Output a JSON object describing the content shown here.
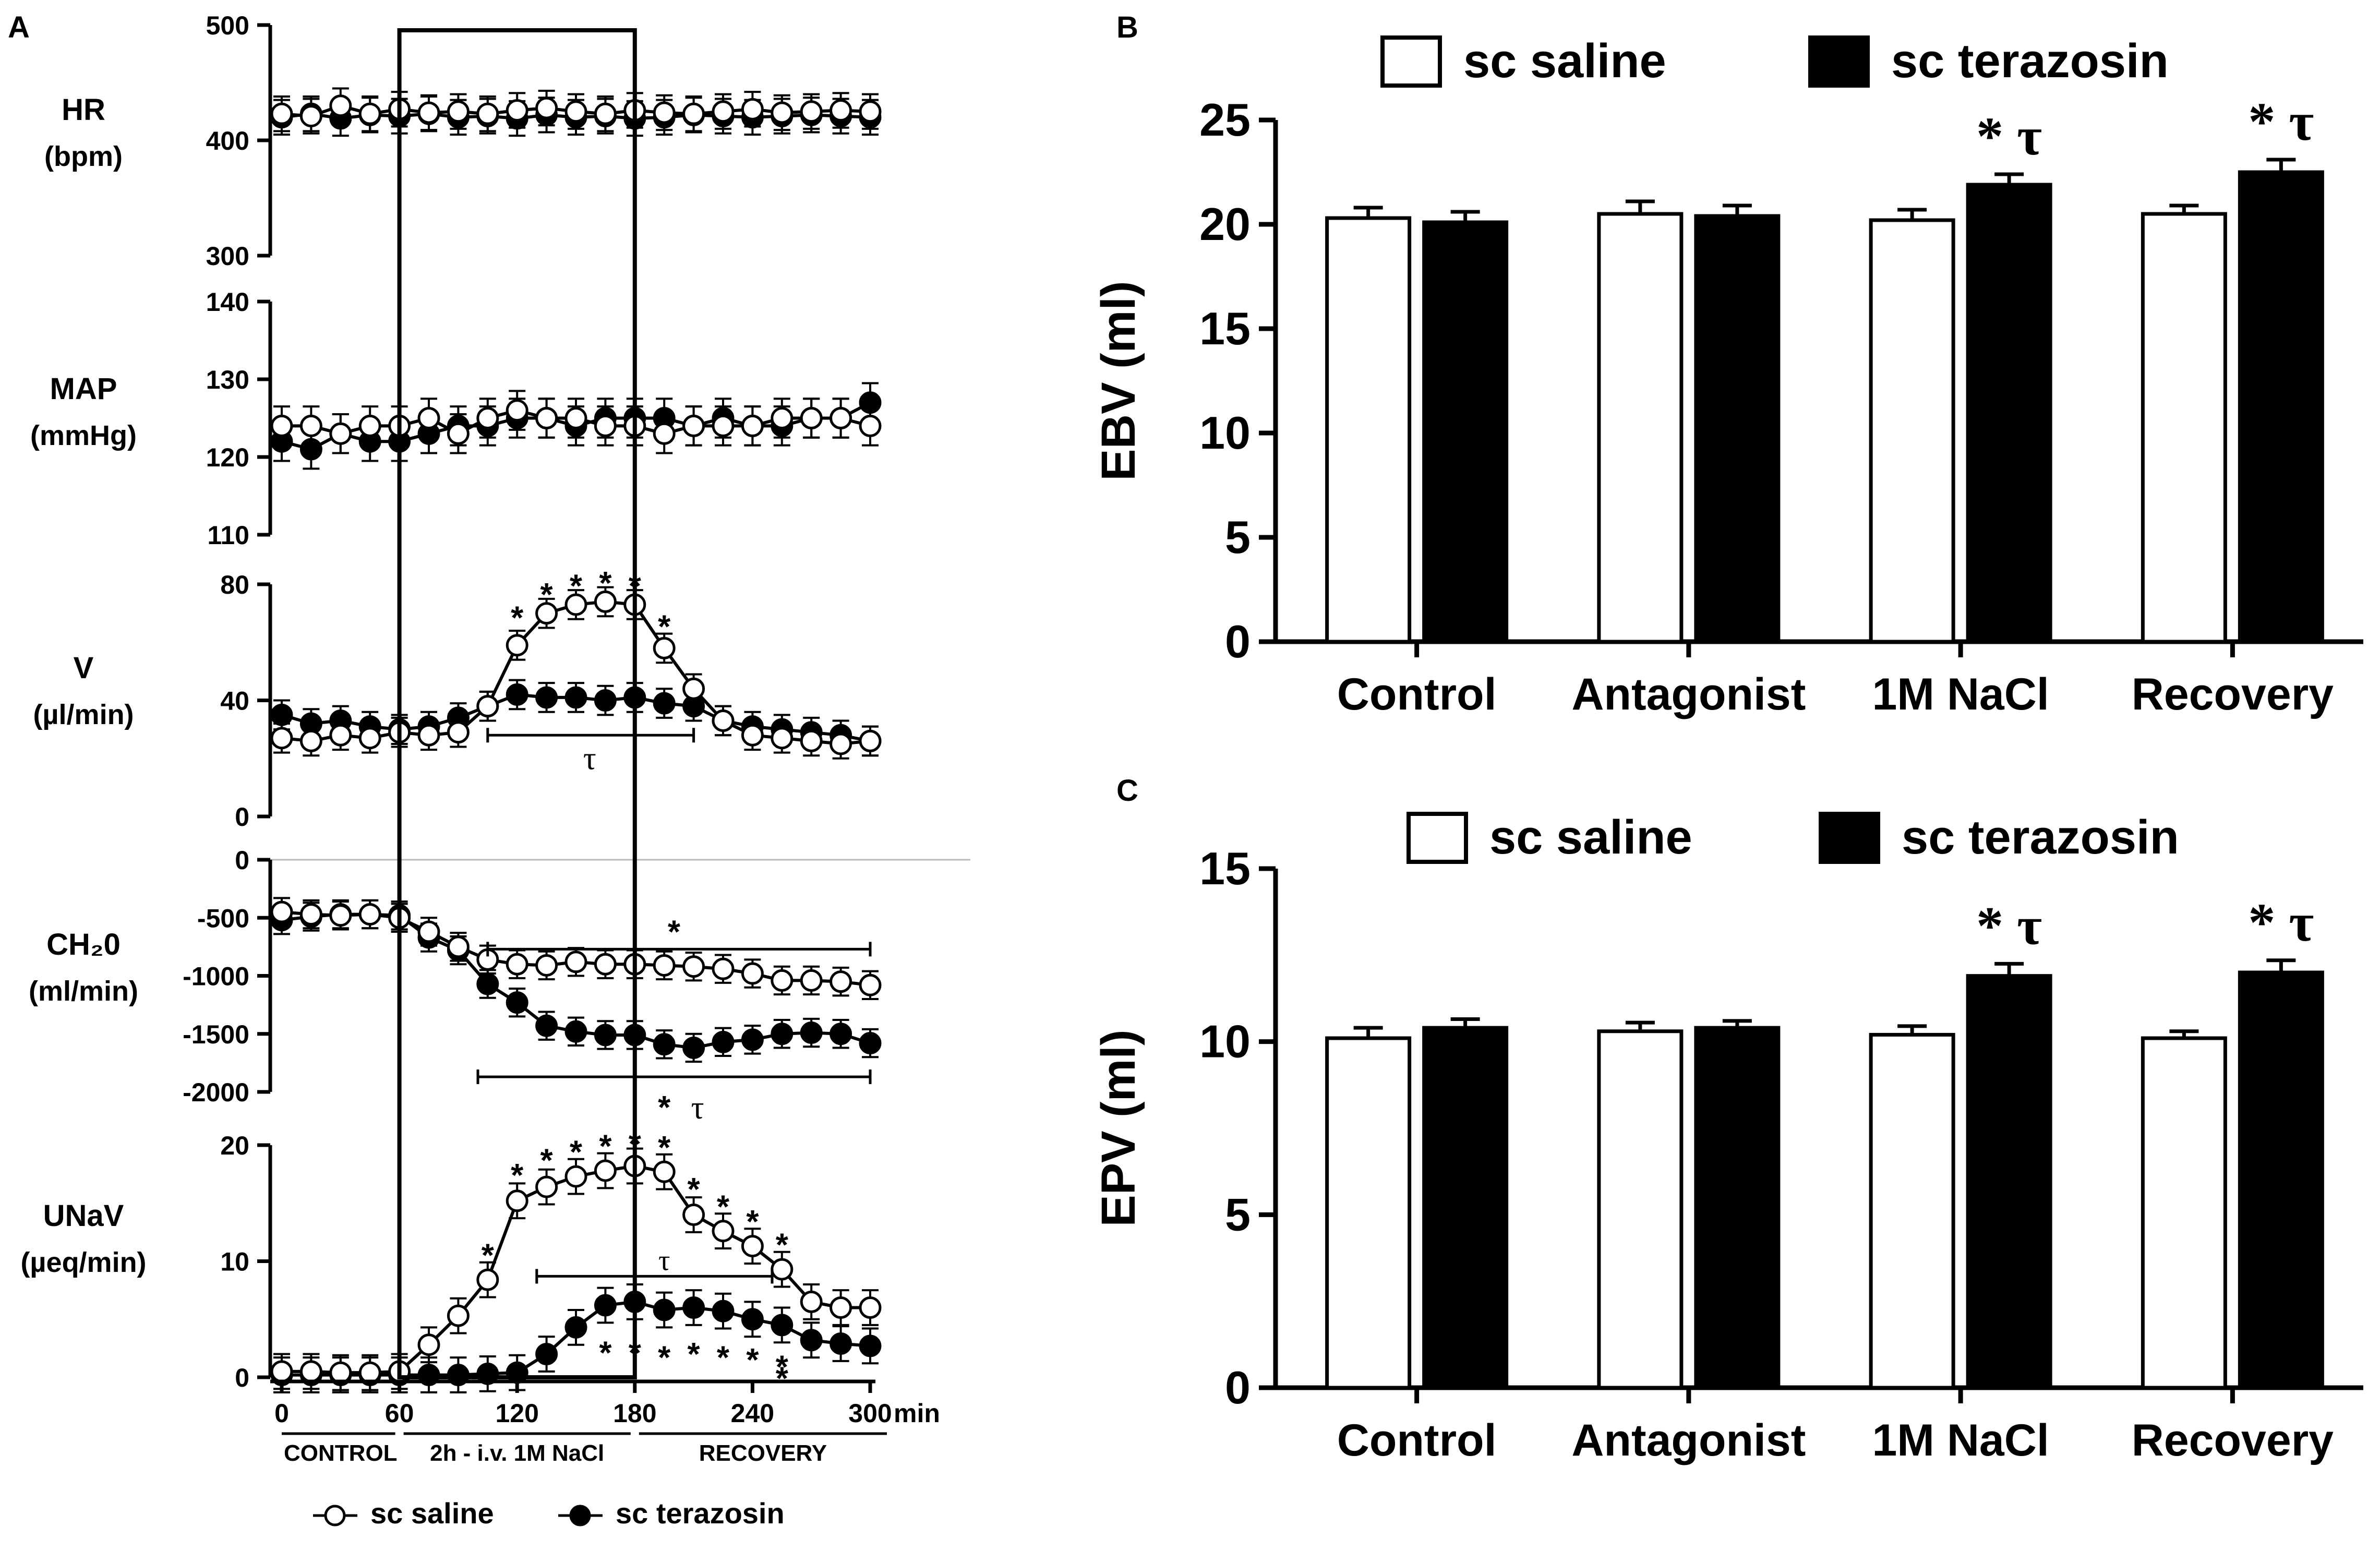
{
  "figure": {
    "panel_labels": [
      "A",
      "B",
      "C"
    ],
    "legend_A": {
      "saline": "sc saline",
      "terazosin": "sc terazosin"
    },
    "x_axis": {
      "ticks": [
        "0",
        "60",
        "120",
        "180",
        "240",
        "300"
      ],
      "tick_values": [
        0,
        60,
        120,
        180,
        240,
        300
      ],
      "unit": "min",
      "phases": [
        "CONTROL",
        "2h - i.v. 1M NaCl",
        "RECOVERY"
      ]
    }
  },
  "chart_data": [
    {
      "type": "line",
      "id": "HR",
      "ylabel": [
        "HR",
        "(bpm)"
      ],
      "ylim": [
        300,
        500
      ],
      "yticks": [
        "300",
        "400",
        "500"
      ],
      "ytick_values": [
        300,
        400,
        500
      ],
      "x": [
        0,
        15,
        30,
        45,
        60,
        75,
        90,
        105,
        120,
        135,
        150,
        165,
        180,
        195,
        210,
        225,
        240,
        255,
        270,
        285,
        300
      ],
      "series": [
        {
          "name": "sc saline",
          "values": [
            423,
            421,
            430,
            423,
            427,
            424,
            425,
            423,
            426,
            428,
            425,
            423,
            426,
            424,
            423,
            425,
            427,
            424,
            425,
            426,
            425
          ]
        },
        {
          "name": "sc terazosin",
          "values": [
            420,
            423,
            419,
            422,
            421,
            423,
            420,
            421,
            419,
            422,
            420,
            421,
            419,
            420,
            422,
            421,
            420,
            421,
            422,
            421,
            420
          ]
        }
      ],
      "errors": 15,
      "annotations": []
    },
    {
      "type": "line",
      "id": "MAP",
      "ylabel": [
        "MAP",
        "(mmHg)"
      ],
      "ylim": [
        110,
        140
      ],
      "yticks": [
        "110",
        "120",
        "130",
        "140"
      ],
      "ytick_values": [
        110,
        120,
        130,
        140
      ],
      "x": [
        0,
        15,
        30,
        45,
        60,
        75,
        90,
        105,
        120,
        135,
        150,
        165,
        180,
        195,
        210,
        225,
        240,
        255,
        270,
        285,
        300
      ],
      "series": [
        {
          "name": "sc saline",
          "values": [
            124,
            124,
            123,
            124,
            124,
            125,
            123,
            125,
            126,
            125,
            125,
            124,
            124,
            123,
            124,
            124,
            124,
            125,
            125,
            125,
            124
          ]
        },
        {
          "name": "sc terazosin",
          "values": [
            122,
            121,
            123,
            122,
            122,
            123,
            124,
            124,
            125,
            125,
            124,
            125,
            125,
            125,
            124,
            125,
            124,
            124,
            125,
            125,
            127
          ]
        }
      ],
      "errors": 2.5,
      "annotations": []
    },
    {
      "type": "line",
      "id": "V",
      "ylabel": [
        "V",
        "(µl/min)"
      ],
      "ylim": [
        0,
        80
      ],
      "yticks": [
        "0",
        "40",
        "80"
      ],
      "ytick_values": [
        0,
        40,
        80
      ],
      "x": [
        0,
        15,
        30,
        45,
        60,
        75,
        90,
        105,
        120,
        135,
        150,
        165,
        180,
        195,
        210,
        225,
        240,
        255,
        270,
        285,
        300
      ],
      "series": [
        {
          "name": "sc saline",
          "values": [
            27,
            26,
            28,
            27,
            29,
            28,
            29,
            38,
            59,
            70,
            73,
            74,
            73,
            58,
            44,
            33,
            28,
            27,
            26,
            25,
            26
          ]
        },
        {
          "name": "sc terazosin",
          "values": [
            35,
            32,
            33,
            31,
            30,
            31,
            34,
            38,
            42,
            41,
            41,
            40,
            41,
            39,
            38,
            33,
            31,
            30,
            29,
            28,
            26
          ]
        }
      ],
      "errors": 5,
      "annotations": [
        "*",
        "*",
        "*",
        "*",
        "*",
        "*",
        "τ"
      ]
    },
    {
      "type": "line",
      "id": "CH2O",
      "ylabel": [
        "CH₂0",
        "(ml/min)"
      ],
      "ylim": [
        -2000,
        0
      ],
      "yticks": [
        "0",
        "-500",
        "-1000",
        "-1500",
        "-2000"
      ],
      "ytick_values": [
        0,
        -500,
        -1000,
        -1500,
        -2000
      ],
      "x": [
        0,
        15,
        30,
        45,
        60,
        75,
        90,
        105,
        120,
        135,
        150,
        165,
        180,
        195,
        210,
        225,
        240,
        255,
        270,
        285,
        300
      ],
      "series": [
        {
          "name": "sc saline",
          "values": [
            -450,
            -470,
            -480,
            -470,
            -500,
            -620,
            -750,
            -860,
            -900,
            -910,
            -880,
            -900,
            -900,
            -910,
            -920,
            -940,
            -980,
            -1040,
            -1040,
            -1050,
            -1080
          ]
        },
        {
          "name": "sc terazosin",
          "values": [
            -520,
            -490,
            -470,
            -470,
            -480,
            -670,
            -780,
            -1070,
            -1230,
            -1430,
            -1480,
            -1510,
            -1510,
            -1590,
            -1620,
            -1570,
            -1550,
            -1500,
            -1490,
            -1500,
            -1580
          ]
        }
      ],
      "errors": 120,
      "annotations": [
        "*",
        "*",
        "τ"
      ]
    },
    {
      "type": "line",
      "id": "UNaV",
      "ylabel": [
        "UNaV",
        "(µeq/min)"
      ],
      "ylim": [
        0,
        20
      ],
      "yticks": [
        "0",
        "10",
        "20"
      ],
      "ytick_values": [
        0,
        10,
        20
      ],
      "x": [
        0,
        15,
        30,
        45,
        60,
        75,
        90,
        105,
        120,
        135,
        150,
        165,
        180,
        195,
        210,
        225,
        240,
        255,
        270,
        285,
        300
      ],
      "series": [
        {
          "name": "sc saline",
          "values": [
            0.5,
            0.5,
            0.4,
            0.4,
            0.5,
            2.8,
            5.3,
            8.4,
            15.2,
            16.4,
            17.3,
            17.8,
            18.2,
            17.7,
            14.0,
            12.6,
            11.3,
            9.3,
            6.5,
            6.0,
            6.0
          ]
        },
        {
          "name": "sc terazosin",
          "values": [
            0.2,
            0.2,
            0.2,
            0.2,
            0.2,
            0.2,
            0.2,
            0.3,
            0.4,
            2.0,
            4.3,
            6.2,
            6.5,
            5.8,
            6.0,
            5.7,
            5.0,
            4.5,
            3.2,
            2.9,
            2.7
          ]
        }
      ],
      "errors": 1.5,
      "annotations": [
        "*",
        "*",
        "*",
        "*",
        "*",
        "*",
        "*",
        "*",
        "*",
        "*",
        "*",
        "*",
        "*",
        "*",
        "*",
        "*",
        "*",
        "*",
        "*",
        "τ"
      ]
    },
    {
      "type": "bar",
      "id": "EBV",
      "ylabel": "EBV (ml)",
      "ylim": [
        0,
        25
      ],
      "yticks": [
        "0",
        "5",
        "10",
        "15",
        "20",
        "25"
      ],
      "ytick_values": [
        0,
        5,
        10,
        15,
        20,
        25
      ],
      "categories": [
        "Control",
        "Antagonist",
        "1M NaCl",
        "Recovery"
      ],
      "series": [
        {
          "name": "sc saline",
          "values": [
            20.3,
            20.5,
            20.2,
            20.5
          ],
          "errors": [
            0.5,
            0.6,
            0.5,
            0.4
          ]
        },
        {
          "name": "sc terazosin",
          "values": [
            20.1,
            20.4,
            21.9,
            22.5
          ],
          "errors": [
            0.5,
            0.5,
            0.5,
            0.6
          ]
        }
      ],
      "legend": [
        "sc saline",
        "sc terazosin"
      ],
      "significance": [
        "",
        "",
        "* τ",
        "* τ"
      ]
    },
    {
      "type": "bar",
      "id": "EPV",
      "ylabel": "EPV (ml)",
      "ylim": [
        0,
        15
      ],
      "yticks": [
        "0",
        "5",
        "10",
        "15"
      ],
      "ytick_values": [
        0,
        5,
        10,
        15
      ],
      "categories": [
        "Control",
        "Antagonist",
        "1M NaCl",
        "Recovery"
      ],
      "series": [
        {
          "name": "sc saline",
          "values": [
            10.1,
            10.3,
            10.2,
            10.1
          ],
          "errors": [
            0.3,
            0.25,
            0.25,
            0.2
          ]
        },
        {
          "name": "sc terazosin",
          "values": [
            10.4,
            10.4,
            11.9,
            12.0
          ],
          "errors": [
            0.25,
            0.2,
            0.35,
            0.35
          ]
        }
      ],
      "legend": [
        "sc saline",
        "sc terazosin"
      ],
      "significance": [
        "",
        "",
        "* τ",
        "* τ"
      ]
    }
  ]
}
